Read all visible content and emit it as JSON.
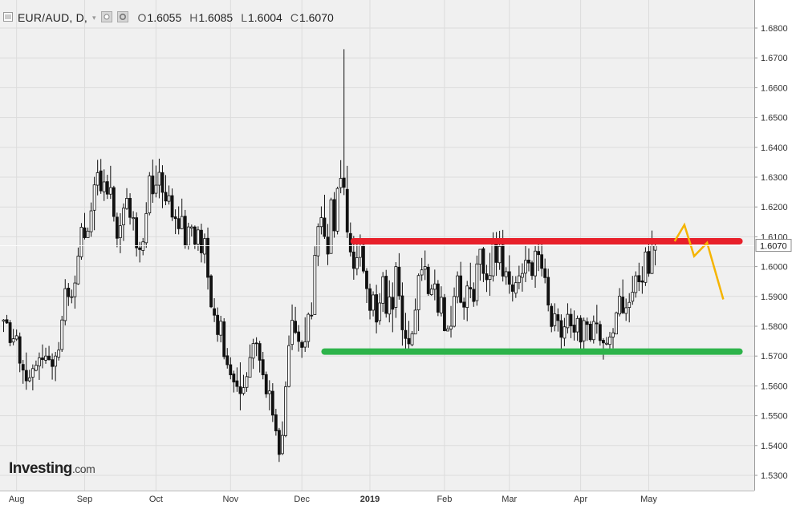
{
  "header": {
    "symbol": "EUR/AUD, D,",
    "ohlc": [
      {
        "key": "O",
        "value": "1.6055"
      },
      {
        "key": "H",
        "value": "1.6085"
      },
      {
        "key": "L",
        "value": "1.6004"
      },
      {
        "key": "C",
        "value": "1.6070"
      }
    ]
  },
  "logo": {
    "brand": "Investing",
    "domain": ".com"
  },
  "colors": {
    "up": "#ffffff",
    "down": "#111111",
    "wick": "#111111",
    "grid": "#dcdcdc",
    "background": "#f0f0f0",
    "resistance": "#e8202a",
    "support": "#2db34a",
    "projection": "#f5b400",
    "price_label_bg": "#ffffff"
  },
  "chart_data": {
    "type": "candlestick",
    "ylim": [
      1.525,
      1.6935
    ],
    "y_ticks": [
      "1.6800",
      "1.6700",
      "1.6600",
      "1.6500",
      "1.6400",
      "1.6300",
      "1.6200",
      "1.6100",
      "1.6000",
      "1.5900",
      "1.5800",
      "1.5700",
      "1.5600",
      "1.5500",
      "1.5400",
      "1.5300"
    ],
    "x_ticks": [
      {
        "label": "Aug",
        "index": 4
      },
      {
        "label": "Sep",
        "index": 25
      },
      {
        "label": "Oct",
        "index": 47
      },
      {
        "label": "Nov",
        "index": 70
      },
      {
        "label": "Dec",
        "index": 92
      },
      {
        "label": "2019",
        "index": 113
      },
      {
        "label": "Feb",
        "index": 136
      },
      {
        "label": "Mar",
        "index": 156
      },
      {
        "label": "Apr",
        "index": 178
      },
      {
        "label": "May",
        "index": 199
      }
    ],
    "current_price": "1.6070",
    "candles": [
      [
        1.5817,
        1.5824,
        1.5781,
        1.5821
      ],
      [
        1.5822,
        1.5838,
        1.5808,
        1.5811
      ],
      [
        1.5812,
        1.5821,
        1.5733,
        1.5745
      ],
      [
        1.5747,
        1.5791,
        1.5736,
        1.5758
      ],
      [
        1.5757,
        1.5789,
        1.5751,
        1.5768
      ],
      [
        1.5765,
        1.5779,
        1.5646,
        1.5676
      ],
      [
        1.5672,
        1.5687,
        1.5607,
        1.5653
      ],
      [
        1.5652,
        1.5712,
        1.5587,
        1.5617
      ],
      [
        1.5617,
        1.5654,
        1.5612,
        1.5627
      ],
      [
        1.5629,
        1.5672,
        1.5585,
        1.5658
      ],
      [
        1.5652,
        1.5685,
        1.5649,
        1.5669
      ],
      [
        1.5667,
        1.5712,
        1.562,
        1.5694
      ],
      [
        1.5694,
        1.5739,
        1.5659,
        1.5688
      ],
      [
        1.5686,
        1.5728,
        1.5674,
        1.57
      ],
      [
        1.57,
        1.5734,
        1.5685,
        1.5688
      ],
      [
        1.5688,
        1.5709,
        1.5621,
        1.5665
      ],
      [
        1.5666,
        1.5714,
        1.5616,
        1.57
      ],
      [
        1.5696,
        1.5747,
        1.5685,
        1.572
      ],
      [
        1.5722,
        1.5835,
        1.5714,
        1.5821
      ],
      [
        1.5819,
        1.5958,
        1.5803,
        1.5926
      ],
      [
        1.5928,
        1.5945,
        1.5868,
        1.5899
      ],
      [
        1.5898,
        1.5923,
        1.5877,
        1.5899
      ],
      [
        1.5899,
        1.597,
        1.5859,
        1.5945
      ],
      [
        1.5942,
        1.6064,
        1.5939,
        1.6035
      ],
      [
        1.6033,
        1.6146,
        1.6023,
        1.6132
      ],
      [
        1.613,
        1.618,
        1.6091,
        1.6097
      ],
      [
        1.6097,
        1.6131,
        1.6096,
        1.6119
      ],
      [
        1.6117,
        1.6215,
        1.61,
        1.6187
      ],
      [
        1.6189,
        1.6301,
        1.6122,
        1.6274
      ],
      [
        1.6273,
        1.6358,
        1.6239,
        1.6315
      ],
      [
        1.6321,
        1.6361,
        1.6244,
        1.6254
      ],
      [
        1.6251,
        1.6326,
        1.622,
        1.6284
      ],
      [
        1.6285,
        1.6308,
        1.6227,
        1.6243
      ],
      [
        1.6243,
        1.6338,
        1.6227,
        1.6265
      ],
      [
        1.6265,
        1.6271,
        1.6151,
        1.6168
      ],
      [
        1.6166,
        1.6181,
        1.6065,
        1.6095
      ],
      [
        1.6097,
        1.6179,
        1.6045,
        1.6137
      ],
      [
        1.614,
        1.6212,
        1.6086,
        1.6196
      ],
      [
        1.6195,
        1.6263,
        1.619,
        1.6229
      ],
      [
        1.6229,
        1.6246,
        1.6141,
        1.6165
      ],
      [
        1.6161,
        1.6186,
        1.6121,
        1.6164
      ],
      [
        1.6164,
        1.6182,
        1.6034,
        1.6063
      ],
      [
        1.6063,
        1.6083,
        1.6014,
        1.6057
      ],
      [
        1.6054,
        1.6096,
        1.6038,
        1.6083
      ],
      [
        1.608,
        1.6216,
        1.6063,
        1.6178
      ],
      [
        1.618,
        1.6317,
        1.6172,
        1.6304
      ],
      [
        1.6304,
        1.6359,
        1.6214,
        1.6244
      ],
      [
        1.6246,
        1.6339,
        1.6232,
        1.6273
      ],
      [
        1.6273,
        1.6362,
        1.6229,
        1.6316
      ],
      [
        1.6315,
        1.634,
        1.6196,
        1.6249
      ],
      [
        1.6249,
        1.6307,
        1.6206,
        1.622
      ],
      [
        1.6219,
        1.6272,
        1.6208,
        1.6238
      ],
      [
        1.6238,
        1.6262,
        1.6153,
        1.6166
      ],
      [
        1.6167,
        1.6192,
        1.6109,
        1.6161
      ],
      [
        1.6161,
        1.6202,
        1.6108,
        1.6127
      ],
      [
        1.6127,
        1.6228,
        1.6125,
        1.6168
      ],
      [
        1.6169,
        1.619,
        1.606,
        1.607
      ],
      [
        1.6071,
        1.6147,
        1.6057,
        1.6133
      ],
      [
        1.6129,
        1.6141,
        1.6101,
        1.6133
      ],
      [
        1.6133,
        1.6138,
        1.6059,
        1.6075
      ],
      [
        1.6075,
        1.6135,
        1.6053,
        1.6123
      ],
      [
        1.6122,
        1.6144,
        1.6014,
        1.6046
      ],
      [
        1.6042,
        1.6111,
        1.6011,
        1.6094
      ],
      [
        1.6095,
        1.6131,
        1.5923,
        1.5964
      ],
      [
        1.5969,
        1.5974,
        1.5861,
        1.5865
      ],
      [
        1.5859,
        1.5894,
        1.5814,
        1.5837
      ],
      [
        1.5837,
        1.5863,
        1.5748,
        1.5772
      ],
      [
        1.577,
        1.5835,
        1.5746,
        1.5817
      ],
      [
        1.5815,
        1.5827,
        1.5689,
        1.5698
      ],
      [
        1.5701,
        1.5727,
        1.5658,
        1.5671
      ],
      [
        1.5671,
        1.5696,
        1.5622,
        1.5637
      ],
      [
        1.564,
        1.5651,
        1.5578,
        1.5613
      ],
      [
        1.5617,
        1.5662,
        1.558,
        1.5598
      ],
      [
        1.5597,
        1.5679,
        1.5518,
        1.5574
      ],
      [
        1.5575,
        1.5637,
        1.5568,
        1.5594
      ],
      [
        1.5595,
        1.5646,
        1.558,
        1.5631
      ],
      [
        1.5629,
        1.5739,
        1.5631,
        1.5695
      ],
      [
        1.5693,
        1.5758,
        1.5657,
        1.5742
      ],
      [
        1.5744,
        1.5763,
        1.57,
        1.5742
      ],
      [
        1.5742,
        1.5751,
        1.5645,
        1.5686
      ],
      [
        1.5688,
        1.5714,
        1.5622,
        1.5637
      ],
      [
        1.5638,
        1.5648,
        1.556,
        1.5573
      ],
      [
        1.5574,
        1.5619,
        1.5518,
        1.5583
      ],
      [
        1.5582,
        1.5609,
        1.5479,
        1.5502
      ],
      [
        1.5503,
        1.5523,
        1.5433,
        1.5449
      ],
      [
        1.5451,
        1.5459,
        1.5345,
        1.537
      ],
      [
        1.5373,
        1.5481,
        1.5368,
        1.5434
      ],
      [
        1.5433,
        1.5615,
        1.5428,
        1.5597
      ],
      [
        1.5598,
        1.5769,
        1.5595,
        1.5735
      ],
      [
        1.5739,
        1.5873,
        1.572,
        1.582
      ],
      [
        1.5817,
        1.5865,
        1.5774,
        1.5779
      ],
      [
        1.5781,
        1.5804,
        1.5715,
        1.5749
      ],
      [
        1.5746,
        1.5753,
        1.5694,
        1.5729
      ],
      [
        1.573,
        1.583,
        1.5714,
        1.5748
      ],
      [
        1.5749,
        1.5846,
        1.5728,
        1.584
      ],
      [
        1.5837,
        1.588,
        1.5823,
        1.5836
      ],
      [
        1.5839,
        1.6068,
        1.5842,
        1.6038
      ],
      [
        1.6036,
        1.6145,
        1.6002,
        1.6134
      ],
      [
        1.6134,
        1.6202,
        1.6108,
        1.6164
      ],
      [
        1.6163,
        1.6241,
        1.6093,
        1.6101
      ],
      [
        1.6099,
        1.6143,
        1.6005,
        1.6042
      ],
      [
        1.6044,
        1.6231,
        1.6043,
        1.6224
      ],
      [
        1.6225,
        1.625,
        1.6097,
        1.612
      ],
      [
        1.6119,
        1.6268,
        1.6108,
        1.6262
      ],
      [
        1.6265,
        1.6357,
        1.6246,
        1.6296
      ],
      [
        1.6297,
        1.6729,
        1.624,
        1.6266
      ],
      [
        1.6259,
        1.6338,
        1.6096,
        1.6116
      ],
      [
        1.6111,
        1.6148,
        1.6034,
        1.6049
      ],
      [
        1.6049,
        1.6103,
        1.5956,
        1.5994
      ],
      [
        1.5993,
        1.6079,
        1.5971,
        1.603
      ],
      [
        1.6031,
        1.6108,
        1.6,
        1.607
      ],
      [
        1.6071,
        1.608,
        1.5977,
        1.5985
      ],
      [
        1.5985,
        1.5995,
        1.5878,
        1.5926
      ],
      [
        1.5926,
        1.5943,
        1.5823,
        1.5853
      ],
      [
        1.5854,
        1.5917,
        1.5833,
        1.5905
      ],
      [
        1.5906,
        1.5939,
        1.5776,
        1.5814
      ],
      [
        1.5819,
        1.5911,
        1.5805,
        1.5878
      ],
      [
        1.5877,
        1.5982,
        1.5848,
        1.5966
      ],
      [
        1.5968,
        1.5989,
        1.5829,
        1.5843
      ],
      [
        1.5841,
        1.5954,
        1.5813,
        1.5898
      ],
      [
        1.5897,
        1.5947,
        1.578,
        1.5857
      ],
      [
        1.5863,
        1.6015,
        1.5828,
        1.6
      ],
      [
        1.5998,
        1.6045,
        1.5889,
        1.5902
      ],
      [
        1.5902,
        1.5947,
        1.5735,
        1.5788
      ],
      [
        1.5786,
        1.5845,
        1.5723,
        1.5759
      ],
      [
        1.5759,
        1.5818,
        1.5716,
        1.5741
      ],
      [
        1.5738,
        1.5784,
        1.5733,
        1.5775
      ],
      [
        1.5774,
        1.5893,
        1.5779,
        1.5854
      ],
      [
        1.5855,
        1.5977,
        1.5784,
        1.597
      ],
      [
        1.5972,
        1.6029,
        1.5952,
        1.5989
      ],
      [
        1.5991,
        1.6054,
        1.5955,
        1.6
      ],
      [
        1.5998,
        1.6009,
        1.5902,
        1.5909
      ],
      [
        1.5906,
        1.594,
        1.5902,
        1.5925
      ],
      [
        1.5924,
        1.599,
        1.5887,
        1.5942
      ],
      [
        1.5942,
        1.5955,
        1.5834,
        1.5847
      ],
      [
        1.5844,
        1.5934,
        1.5833,
        1.5897
      ],
      [
        1.5896,
        1.5908,
        1.5783,
        1.5785
      ],
      [
        1.5784,
        1.5803,
        1.5783,
        1.5791
      ],
      [
        1.5791,
        1.5868,
        1.5762,
        1.58
      ],
      [
        1.58,
        1.593,
        1.5796,
        1.59
      ],
      [
        1.5899,
        1.5984,
        1.5877,
        1.5969
      ],
      [
        1.5969,
        1.6016,
        1.5877,
        1.588
      ],
      [
        1.5881,
        1.5896,
        1.5822,
        1.5864
      ],
      [
        1.5863,
        1.5952,
        1.5817,
        1.5935
      ],
      [
        1.593,
        1.6013,
        1.5894,
        1.5925
      ],
      [
        1.5924,
        1.5947,
        1.5865,
        1.5883
      ],
      [
        1.5886,
        1.6037,
        1.5869,
        1.6009
      ],
      [
        1.6008,
        1.6054,
        1.5953,
        1.6058
      ],
      [
        1.606,
        1.6066,
        1.5948,
        1.5977
      ],
      [
        1.5976,
        1.6006,
        1.5915,
        1.5956
      ],
      [
        1.5957,
        1.6046,
        1.5902,
        1.597
      ],
      [
        1.5969,
        1.6115,
        1.595,
        1.6082
      ],
      [
        1.6082,
        1.6116,
        1.5969,
        1.6014
      ],
      [
        1.6013,
        1.612,
        1.5989,
        1.6068
      ],
      [
        1.6072,
        1.6123,
        1.595,
        1.5968
      ],
      [
        1.5966,
        1.5998,
        1.5939,
        1.5983
      ],
      [
        1.5983,
        1.6038,
        1.5909,
        1.5941
      ],
      [
        1.5939,
        1.5969,
        1.5883,
        1.5917
      ],
      [
        1.5911,
        1.5968,
        1.5895,
        1.5946
      ],
      [
        1.5946,
        1.6003,
        1.5924,
        1.5969
      ],
      [
        1.5964,
        1.6011,
        1.5916,
        1.5977
      ],
      [
        1.5978,
        1.607,
        1.5948,
        1.6021
      ],
      [
        1.6022,
        1.6061,
        1.5984,
        1.6012
      ],
      [
        1.6013,
        1.602,
        1.5956,
        1.597
      ],
      [
        1.5969,
        1.6071,
        1.5929,
        1.6052
      ],
      [
        1.6051,
        1.6078,
        1.5985,
        1.604
      ],
      [
        1.604,
        1.6086,
        1.5967,
        1.5994
      ],
      [
        1.5993,
        1.6027,
        1.5944,
        1.5963
      ],
      [
        1.5964,
        1.5993,
        1.585,
        1.5871
      ],
      [
        1.5867,
        1.5877,
        1.578,
        1.5799
      ],
      [
        1.5802,
        1.5877,
        1.5783,
        1.5842
      ],
      [
        1.5839,
        1.586,
        1.5782,
        1.5819
      ],
      [
        1.5819,
        1.584,
        1.5723,
        1.5763
      ],
      [
        1.576,
        1.5828,
        1.5733,
        1.5798
      ],
      [
        1.5795,
        1.5877,
        1.5776,
        1.584
      ],
      [
        1.584,
        1.586,
        1.576,
        1.5801
      ],
      [
        1.5804,
        1.5853,
        1.5752,
        1.578
      ],
      [
        1.5781,
        1.5836,
        1.5751,
        1.5826
      ],
      [
        1.5827,
        1.5837,
        1.5723,
        1.5747
      ],
      [
        1.5751,
        1.5829,
        1.5711,
        1.5819
      ],
      [
        1.5815,
        1.5829,
        1.5751,
        1.5806
      ],
      [
        1.5807,
        1.5817,
        1.5748,
        1.5755
      ],
      [
        1.5755,
        1.5836,
        1.5742,
        1.5816
      ],
      [
        1.5811,
        1.5872,
        1.5775,
        1.5808
      ],
      [
        1.5806,
        1.5818,
        1.5735,
        1.5752
      ],
      [
        1.5753,
        1.576,
        1.5688,
        1.5744
      ],
      [
        1.574,
        1.5764,
        1.5736,
        1.5743
      ],
      [
        1.5739,
        1.5781,
        1.5706,
        1.5764
      ],
      [
        1.5764,
        1.5794,
        1.5726,
        1.5778
      ],
      [
        1.5774,
        1.5849,
        1.5778,
        1.5845
      ],
      [
        1.5841,
        1.5928,
        1.5833,
        1.5901
      ],
      [
        1.5898,
        1.5957,
        1.5841,
        1.5845
      ],
      [
        1.5843,
        1.5893,
        1.5818,
        1.5862
      ],
      [
        1.5863,
        1.5911,
        1.5813,
        1.588
      ],
      [
        1.5884,
        1.5969,
        1.5872,
        1.5914
      ],
      [
        1.5913,
        1.5984,
        1.5896,
        1.5969
      ],
      [
        1.597,
        1.6013,
        1.5918,
        1.5949
      ],
      [
        1.5952,
        1.6001,
        1.5909,
        1.5948
      ],
      [
        1.5947,
        1.6065,
        1.5935,
        1.6049
      ],
      [
        1.6051,
        1.6085,
        1.5966,
        1.5977
      ],
      [
        1.5977,
        1.6121,
        1.5975,
        1.607
      ],
      [
        1.6055,
        1.6085,
        1.6004,
        1.607
      ]
    ],
    "annotations": [
      {
        "type": "horizontal_line",
        "name": "resistance",
        "price": 1.6085,
        "from_index": 108,
        "to_index": 227
      },
      {
        "type": "horizontal_line",
        "name": "support",
        "price": 1.5715,
        "from_index": 99,
        "to_index": 227
      },
      {
        "type": "projection_path",
        "name": "forecast",
        "points": [
          [
            207,
            1.6085
          ],
          [
            210,
            1.614
          ],
          [
            213,
            1.6035
          ],
          [
            217,
            1.608
          ],
          [
            222,
            1.589
          ]
        ]
      }
    ]
  }
}
